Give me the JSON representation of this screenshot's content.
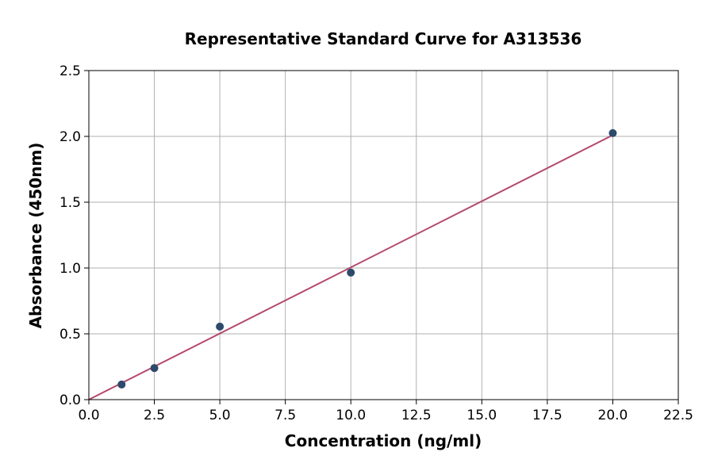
{
  "chart_data": {
    "type": "scatter",
    "title": "Representative Standard Curve for A313536",
    "xlabel": "Concentration (ng/ml)",
    "ylabel": "Absorbance (450nm)",
    "xlim": [
      0,
      22.5
    ],
    "ylim": [
      0,
      2.5
    ],
    "xticks": [
      "0.0",
      "2.5",
      "5.0",
      "7.5",
      "10.0",
      "12.5",
      "15.0",
      "17.5",
      "20.0",
      "22.5"
    ],
    "yticks": [
      "0.0",
      "0.5",
      "1.0",
      "1.5",
      "2.0",
      "2.5"
    ],
    "grid": true,
    "series": [
      {
        "kind": "points",
        "color": "#2e4a6b",
        "x": [
          1.25,
          2.5,
          5,
          10,
          20
        ],
        "y": [
          0.115,
          0.24,
          0.555,
          0.965,
          2.025
        ]
      },
      {
        "kind": "fit-line",
        "color": "#b5496e",
        "x": [
          0,
          20
        ],
        "y": [
          0.0,
          2.01
        ]
      }
    ]
  }
}
